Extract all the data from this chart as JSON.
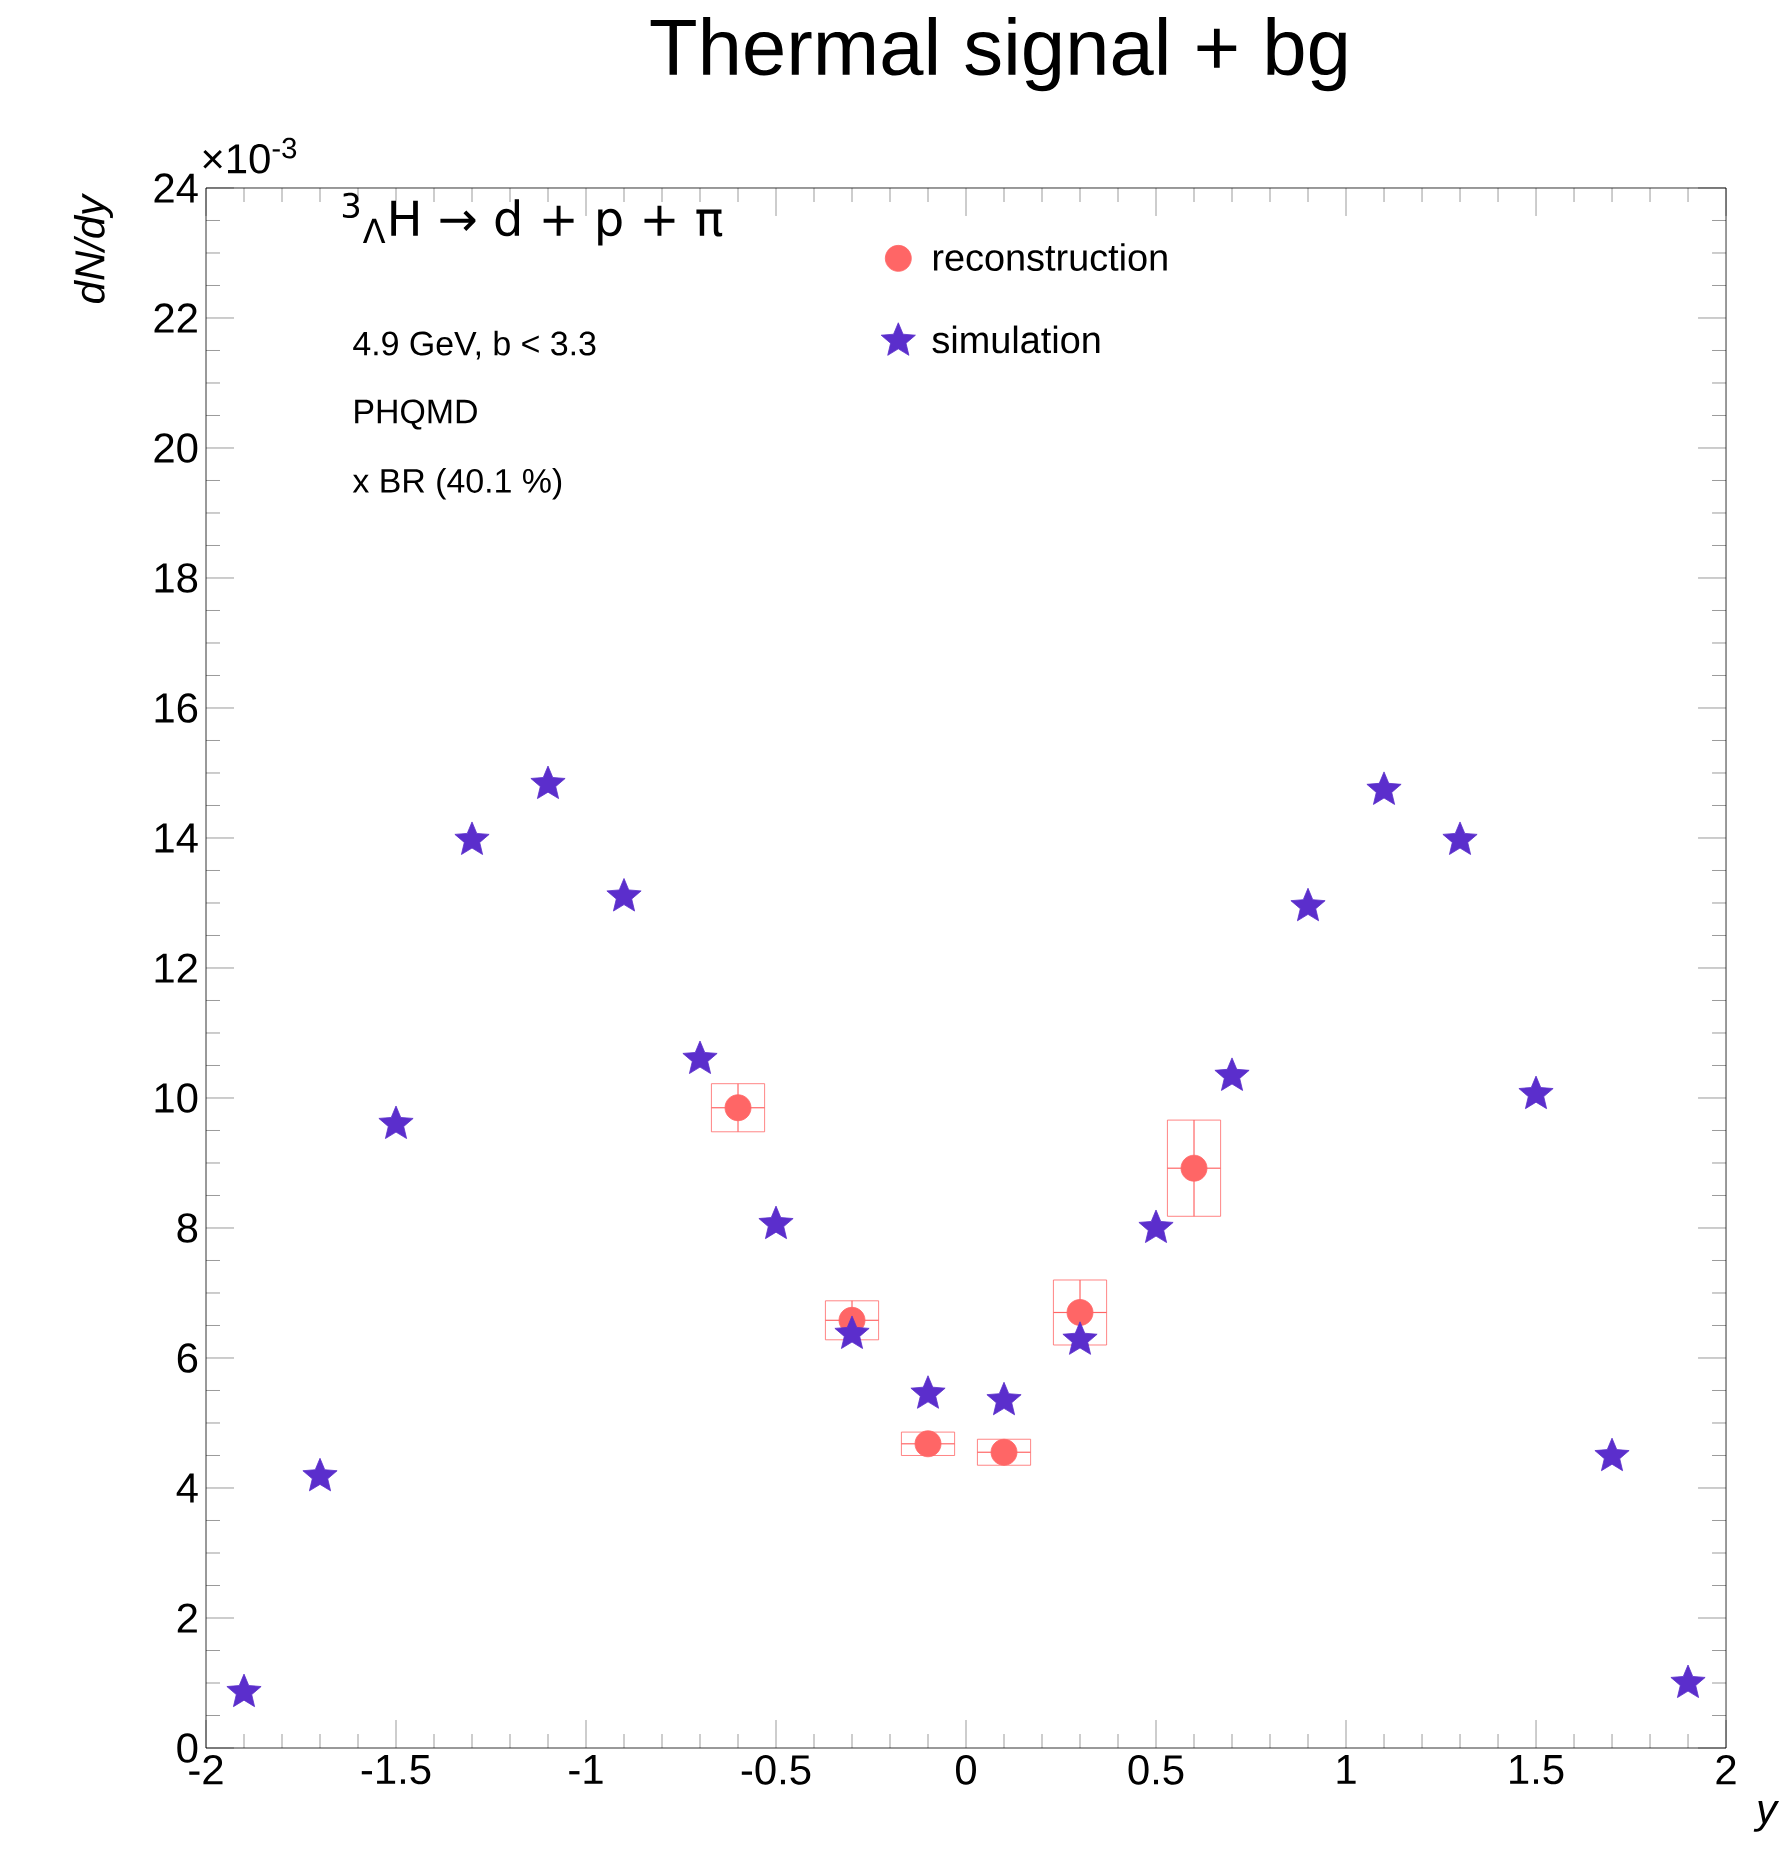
{
  "chart_data": {
    "type": "scatter",
    "title": "Thermal signal + bg",
    "xlabel": "y",
    "ylabel": "dN/dy",
    "annotations": [
      "×10$^{-3}$",
      "$^{3}$$_{Λ}$H → d + p + π",
      "4.9 GeV, b < 3.3",
      "PHQMD",
      "x BR (40.1 %)"
    ],
    "xlim": [
      -2,
      2
    ],
    "xticks": [
      -2,
      -1.5,
      -1,
      -0.5,
      0,
      0.5,
      1,
      1.5,
      2
    ],
    "ylim": [
      0,
      24
    ],
    "yticks": [
      0,
      2,
      4,
      6,
      8,
      10,
      12,
      14,
      16,
      18,
      20,
      22,
      24
    ],
    "grid": false,
    "legend": "top",
    "series": [
      {
        "name": "reconstruction",
        "color": "#ff6666",
        "marker": "circle",
        "x": [
          -0.6,
          -0.3,
          -0.1,
          0.1,
          0.3,
          0.6
        ],
        "values": [
          9.85,
          6.58,
          4.68,
          4.55,
          6.7,
          8.92
        ],
        "errors": [
          0.37,
          0.3,
          0.18,
          0.2,
          0.5,
          0.74
        ],
        "xerrors": [
          0.07,
          0.07,
          0.07,
          0.07,
          0.07,
          0.07
        ]
      },
      {
        "name": "simulation",
        "color": "#5b2ecc",
        "marker": "star",
        "x": [
          -1.9,
          -1.7,
          -1.5,
          -1.3,
          -1.1,
          -0.9,
          -0.7,
          -0.5,
          -0.3,
          -0.1,
          0.1,
          0.3,
          0.5,
          0.7,
          0.9,
          1.1,
          1.3,
          1.5,
          1.7,
          1.9
        ],
        "values": [
          0.86,
          4.18,
          9.6,
          13.97,
          14.83,
          13.1,
          10.6,
          8.06,
          6.37,
          5.45,
          5.35,
          6.28,
          8.0,
          10.34,
          12.95,
          14.74,
          13.97,
          10.06,
          4.49,
          1.0
        ]
      }
    ]
  }
}
